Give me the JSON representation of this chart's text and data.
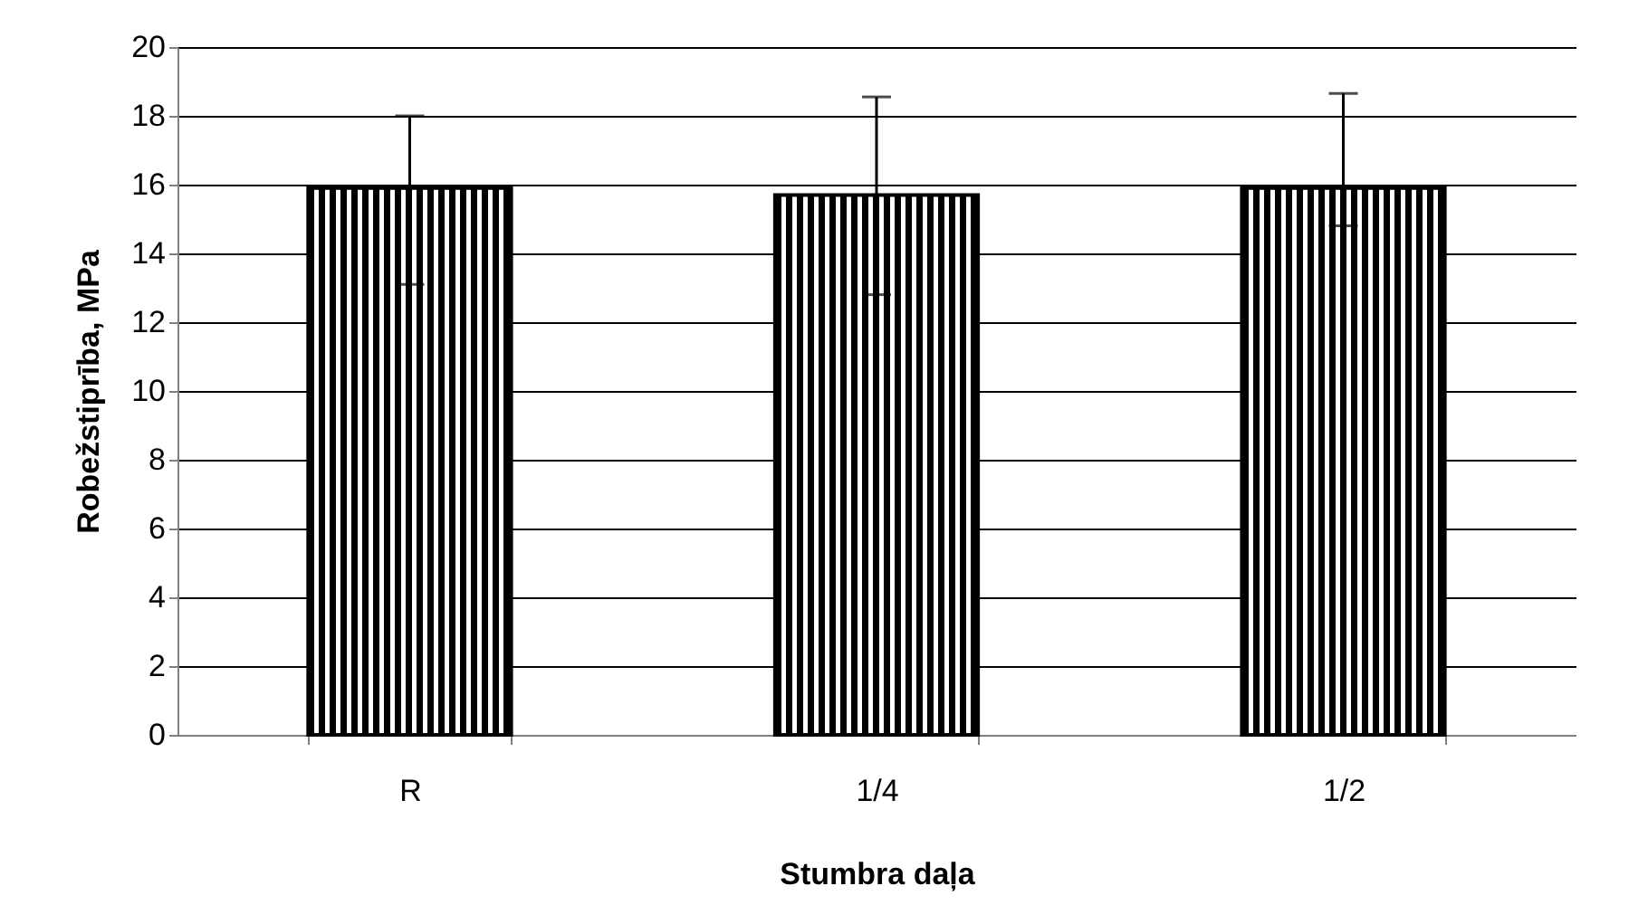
{
  "chart_data": {
    "type": "bar",
    "xlabel": "Stumbra daļa",
    "ylabel": "Robežstiprība, MPa",
    "categories": [
      "R",
      "1/4",
      "1/2"
    ],
    "series": [
      {
        "color": "#000000",
        "values": [
          15.9,
          15.7,
          15.9
        ],
        "errors": [
          [
            13.1,
            18.0
          ],
          [
            12.8,
            18.55
          ],
          [
            14.8,
            18.65
          ]
        ]
      }
    ],
    "ylim": [
      0,
      20
    ],
    "yticks": [
      0,
      2,
      4,
      6,
      8,
      10,
      12,
      14,
      16,
      18,
      20
    ],
    "grid": "y",
    "legend": false
  }
}
